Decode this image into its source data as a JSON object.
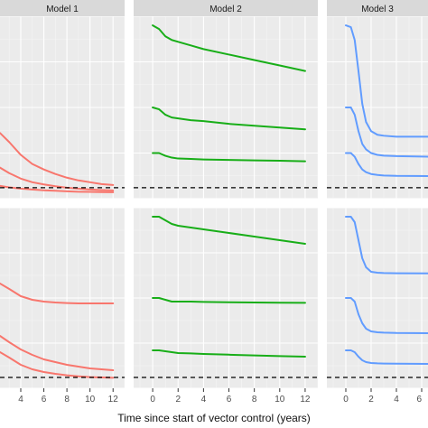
{
  "figure": {
    "xlabel": "Time since start of vector control (years)"
  },
  "chart_data": [
    {
      "type": "line",
      "facet": "Model 1",
      "row": 1,
      "color": "#F8766D",
      "xlim": [
        2.2,
        13
      ],
      "ylim": [
        0,
        1
      ],
      "x_ticks": [
        4,
        6,
        8,
        10,
        12
      ],
      "x_tick_labels": [
        "4",
        "6",
        "8",
        "10",
        "12"
      ],
      "show_x_tick_labels": false,
      "show_strip": true,
      "reference_line_y": 0.06,
      "series": [
        {
          "x": [
            2.2,
            3,
            4,
            5,
            6,
            7,
            8,
            9,
            10,
            11,
            12
          ],
          "y": [
            0.36,
            0.31,
            0.24,
            0.19,
            0.16,
            0.135,
            0.115,
            0.1,
            0.09,
            0.08,
            0.075
          ]
        },
        {
          "x": [
            2.2,
            3,
            4,
            5,
            6,
            7,
            8,
            9,
            10,
            11,
            12
          ],
          "y": [
            0.17,
            0.14,
            0.11,
            0.09,
            0.078,
            0.068,
            0.06,
            0.055,
            0.05,
            0.047,
            0.045
          ]
        },
        {
          "x": [
            2.2,
            3,
            4,
            5,
            6,
            7,
            8,
            9,
            10,
            11,
            12
          ],
          "y": [
            0.07,
            0.062,
            0.055,
            0.05,
            0.046,
            0.043,
            0.04,
            0.038,
            0.037,
            0.036,
            0.035
          ]
        }
      ]
    },
    {
      "type": "line",
      "facet": "Model 2",
      "row": 1,
      "color": "#18AE18",
      "xlim": [
        -1.5,
        13
      ],
      "ylim": [
        0,
        1
      ],
      "x_ticks": [
        0,
        2,
        4,
        6,
        8,
        10,
        12
      ],
      "x_tick_labels": [
        "0",
        "2",
        "4",
        "6",
        "8",
        "10",
        "12"
      ],
      "show_x_tick_labels": false,
      "show_strip": true,
      "reference_line_y": 0.06,
      "series": [
        {
          "x": [
            0,
            0.5,
            1,
            1.5,
            2,
            3,
            4,
            6,
            8,
            10,
            12
          ],
          "y": [
            0.95,
            0.93,
            0.89,
            0.87,
            0.86,
            0.84,
            0.82,
            0.79,
            0.76,
            0.73,
            0.7
          ]
        },
        {
          "x": [
            0,
            0.5,
            1,
            1.5,
            2,
            3,
            4,
            6,
            8,
            10,
            12
          ],
          "y": [
            0.5,
            0.49,
            0.46,
            0.445,
            0.44,
            0.43,
            0.425,
            0.41,
            0.4,
            0.39,
            0.38
          ]
        },
        {
          "x": [
            0,
            0.5,
            1,
            1.5,
            2,
            3,
            4,
            6,
            8,
            10,
            12
          ],
          "y": [
            0.25,
            0.25,
            0.235,
            0.225,
            0.22,
            0.218,
            0.215,
            0.212,
            0.21,
            0.208,
            0.205
          ]
        }
      ]
    },
    {
      "type": "line",
      "facet": "Model 3",
      "row": 1,
      "color": "#619CFF",
      "xlim": [
        -1.5,
        6.5
      ],
      "ylim": [
        0,
        1
      ],
      "x_ticks": [
        0,
        2,
        4,
        6
      ],
      "x_tick_labels": [
        "0",
        "2",
        "4",
        "6"
      ],
      "show_x_tick_labels": false,
      "show_strip": true,
      "reference_line_y": 0.06,
      "series": [
        {
          "x": [
            0,
            0.4,
            0.7,
            1.0,
            1.3,
            1.6,
            2.0,
            2.5,
            3.0,
            4.0,
            6.5
          ],
          "y": [
            0.95,
            0.94,
            0.87,
            0.7,
            0.52,
            0.42,
            0.37,
            0.35,
            0.345,
            0.34,
            0.34
          ]
        },
        {
          "x": [
            0,
            0.4,
            0.7,
            1.0,
            1.3,
            1.6,
            2.0,
            2.5,
            3.0,
            4.0,
            6.5
          ],
          "y": [
            0.5,
            0.5,
            0.46,
            0.37,
            0.3,
            0.27,
            0.25,
            0.24,
            0.236,
            0.233,
            0.23
          ]
        },
        {
          "x": [
            0,
            0.4,
            0.7,
            1.0,
            1.3,
            1.6,
            2.0,
            2.5,
            3.0,
            4.0,
            6.5
          ],
          "y": [
            0.25,
            0.25,
            0.23,
            0.19,
            0.16,
            0.145,
            0.135,
            0.13,
            0.127,
            0.125,
            0.124
          ]
        }
      ]
    },
    {
      "type": "line",
      "facet": "Model 1",
      "row": 2,
      "color": "#F8766D",
      "xlim": [
        2.2,
        13
      ],
      "ylim": [
        0,
        1
      ],
      "x_ticks": [
        4,
        6,
        8,
        10,
        12
      ],
      "x_tick_labels": [
        "4",
        "6",
        "8",
        "10",
        "12"
      ],
      "show_x_tick_labels": true,
      "show_strip": false,
      "reference_line_y": 0.06,
      "series": [
        {
          "x": [
            2.2,
            3,
            4,
            5,
            6,
            7,
            8,
            9,
            10,
            11,
            12
          ],
          "y": [
            0.58,
            0.55,
            0.51,
            0.49,
            0.48,
            0.475,
            0.472,
            0.47,
            0.47,
            0.47,
            0.47
          ]
        },
        {
          "x": [
            2.2,
            3,
            4,
            5,
            6,
            7,
            8,
            9,
            10,
            11,
            12
          ],
          "y": [
            0.29,
            0.255,
            0.215,
            0.185,
            0.16,
            0.145,
            0.13,
            0.12,
            0.11,
            0.105,
            0.1
          ]
        },
        {
          "x": [
            2.2,
            3,
            4,
            5,
            6,
            7,
            8,
            9,
            10,
            11,
            12
          ],
          "y": [
            0.2,
            0.17,
            0.13,
            0.105,
            0.09,
            0.08,
            0.072,
            0.066,
            0.062,
            0.06,
            0.058
          ]
        }
      ]
    },
    {
      "type": "line",
      "facet": "Model 2",
      "row": 2,
      "color": "#18AE18",
      "xlim": [
        -1.5,
        13
      ],
      "ylim": [
        0,
        1
      ],
      "x_ticks": [
        0,
        2,
        4,
        6,
        8,
        10,
        12
      ],
      "x_tick_labels": [
        "0",
        "2",
        "4",
        "6",
        "8",
        "10",
        "12"
      ],
      "show_x_tick_labels": true,
      "show_strip": false,
      "reference_line_y": 0.06,
      "series": [
        {
          "x": [
            0,
            0.5,
            1,
            1.5,
            2,
            3,
            4,
            6,
            8,
            10,
            12
          ],
          "y": [
            0.95,
            0.95,
            0.93,
            0.91,
            0.9,
            0.89,
            0.88,
            0.86,
            0.84,
            0.82,
            0.8
          ]
        },
        {
          "x": [
            0,
            0.5,
            1,
            1.5,
            2,
            3,
            4,
            6,
            8,
            10,
            12
          ],
          "y": [
            0.5,
            0.5,
            0.49,
            0.48,
            0.48,
            0.48,
            0.478,
            0.476,
            0.475,
            0.474,
            0.473
          ]
        },
        {
          "x": [
            0,
            0.5,
            1,
            1.5,
            2,
            3,
            4,
            6,
            8,
            10,
            12
          ],
          "y": [
            0.21,
            0.21,
            0.205,
            0.2,
            0.195,
            0.193,
            0.19,
            0.186,
            0.182,
            0.178,
            0.175
          ]
        }
      ]
    },
    {
      "type": "line",
      "facet": "Model 3",
      "row": 2,
      "color": "#619CFF",
      "xlim": [
        -1.5,
        6.5
      ],
      "ylim": [
        0,
        1
      ],
      "x_ticks": [
        0,
        2,
        4,
        6
      ],
      "x_tick_labels": [
        "0",
        "2",
        "4",
        "6"
      ],
      "show_x_tick_labels": true,
      "show_strip": false,
      "reference_line_y": 0.06,
      "series": [
        {
          "x": [
            0,
            0.4,
            0.7,
            1.0,
            1.3,
            1.6,
            2.0,
            2.5,
            3.0,
            4.0,
            6.5
          ],
          "y": [
            0.95,
            0.95,
            0.92,
            0.82,
            0.72,
            0.67,
            0.645,
            0.64,
            0.638,
            0.637,
            0.636
          ]
        },
        {
          "x": [
            0,
            0.4,
            0.7,
            1.0,
            1.3,
            1.6,
            2.0,
            2.5,
            3.0,
            4.0,
            6.5
          ],
          "y": [
            0.5,
            0.5,
            0.48,
            0.41,
            0.36,
            0.33,
            0.315,
            0.31,
            0.308,
            0.306,
            0.305
          ]
        },
        {
          "x": [
            0,
            0.4,
            0.7,
            1.0,
            1.3,
            1.6,
            2.0,
            2.5,
            3.0,
            4.0,
            6.5
          ],
          "y": [
            0.21,
            0.21,
            0.2,
            0.175,
            0.155,
            0.145,
            0.14,
            0.138,
            0.137,
            0.136,
            0.135
          ]
        }
      ]
    }
  ]
}
